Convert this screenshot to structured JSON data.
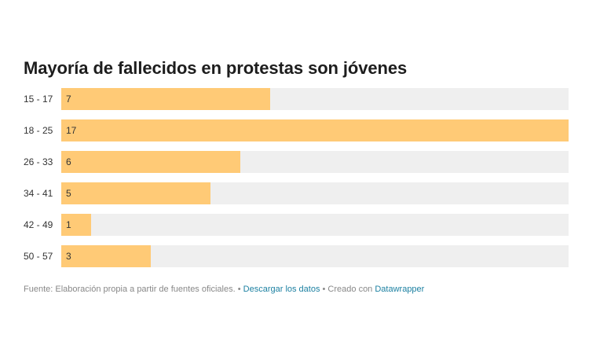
{
  "chart_data": {
    "type": "bar",
    "orientation": "horizontal",
    "title": "Mayoría de fallecidos en protestas son jóvenes",
    "categories": [
      "15 - 17",
      "18 - 25",
      "26 - 33",
      "34 - 41",
      "42 - 49",
      "50 - 57"
    ],
    "values": [
      7,
      17,
      6,
      5,
      1,
      3
    ],
    "xlim": [
      0,
      17
    ],
    "grid": false,
    "legend": "none",
    "colors": {
      "bar": "#ffca76",
      "track": "#efefef"
    }
  },
  "footer": {
    "source": "Fuente: Elaboración propia a partir de fuentes oficiales.",
    "sep1": " • ",
    "download_link": "Descargar los datos",
    "sep2": " • Creado con ",
    "credit_link": "Datawrapper"
  }
}
